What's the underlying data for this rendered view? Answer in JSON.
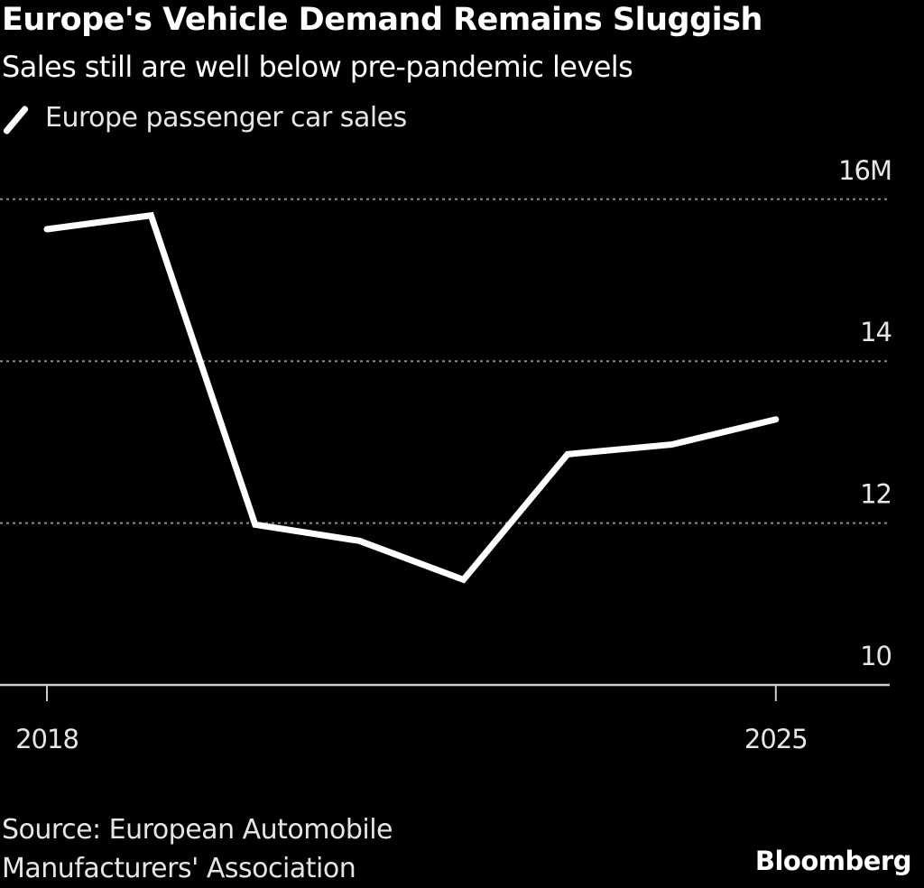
{
  "header": {
    "title": "Europe's Vehicle Demand Remains Sluggish",
    "subtitle": "Sales still are well below pre-pandemic levels",
    "legend_label": "Europe passenger car sales"
  },
  "footer": {
    "source_line1": "Source: European Automobile",
    "source_line2": "Manufacturers' Association",
    "brand": "Bloomberg"
  },
  "colors": {
    "background": "#000000",
    "line": "#ffffff",
    "grid": "#8c8c8c",
    "axis": "#cccccc",
    "text": "#e6e6e6"
  },
  "chart_data": {
    "type": "line",
    "title": "Europe's Vehicle Demand Remains Sluggish",
    "subtitle": "Sales still are well below pre-pandemic levels",
    "xlabel": "",
    "ylabel": "",
    "x": [
      2018,
      2019,
      2020,
      2021,
      2022,
      2023,
      2024,
      2025
    ],
    "series": [
      {
        "name": "Europe passenger car sales",
        "values": [
          15.63,
          15.8,
          11.98,
          11.78,
          11.3,
          12.85,
          12.97,
          13.28
        ]
      }
    ],
    "ylim": [
      10,
      16.4
    ],
    "xlim": [
      2017.6,
      2026.1
    ],
    "yticks": [
      10,
      12,
      14,
      16
    ],
    "ytick_labels": [
      "10",
      "12",
      "14",
      "16M"
    ],
    "xticks": [
      2018,
      2025
    ],
    "xtick_labels": [
      "2018",
      "2025"
    ],
    "grid": true,
    "y_axis_side": "right",
    "legend_position": "top-left",
    "units": "millions"
  }
}
